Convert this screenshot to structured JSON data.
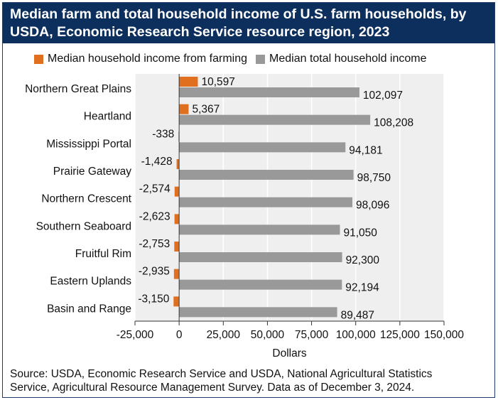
{
  "title_line1": "Median farm and total household income of U.S. farm households, by",
  "title_line2": "USDA, Economic Research Service resource region, 2023",
  "source_line1": "Source: USDA, Economic Research Service and USDA, National Agricultural Statistics",
  "source_line2": "Service, Agricultural Resource Management Survey. Data as of December 3, 2024.",
  "chart_data": {
    "type": "bar",
    "orientation": "horizontal",
    "categories": [
      "Northern Great Plains",
      "Heartland",
      "Mississippi Portal",
      "Prairie Gateway",
      "Northern Crescent",
      "Southern Seaboard",
      "Fruitful Rim",
      "Eastern Uplands",
      "Basin and Range"
    ],
    "series": [
      {
        "name": "Median household income from farming",
        "color": "#e07020",
        "values": [
          10597,
          5367,
          -338,
          -1428,
          -2574,
          -2623,
          -2753,
          -2935,
          -3150
        ],
        "labels": [
          "10,597",
          "5,367",
          "-338",
          "-1,428",
          "-2,574",
          "-2,623",
          "-2,753",
          "-2,935",
          "-3,150"
        ]
      },
      {
        "name": "Median total household income",
        "color": "#999999",
        "values": [
          102097,
          108208,
          94181,
          98750,
          98096,
          91050,
          92300,
          92194,
          89487
        ],
        "labels": [
          "102,097",
          "108,208",
          "94,181",
          "98,750",
          "98,096",
          "91,050",
          "92,300",
          "92,194",
          "89,487"
        ]
      }
    ],
    "xlabel": "Dollars",
    "xlim": [
      -25000,
      150000
    ],
    "xticks": [
      -25000,
      0,
      25000,
      50000,
      75000,
      100000,
      125000,
      150000
    ],
    "xtick_labels": [
      "-25,000",
      "0",
      "25,000",
      "50,000",
      "75,000",
      "100,000",
      "125,000",
      "150,000"
    ],
    "grid": true,
    "legend": "top"
  }
}
